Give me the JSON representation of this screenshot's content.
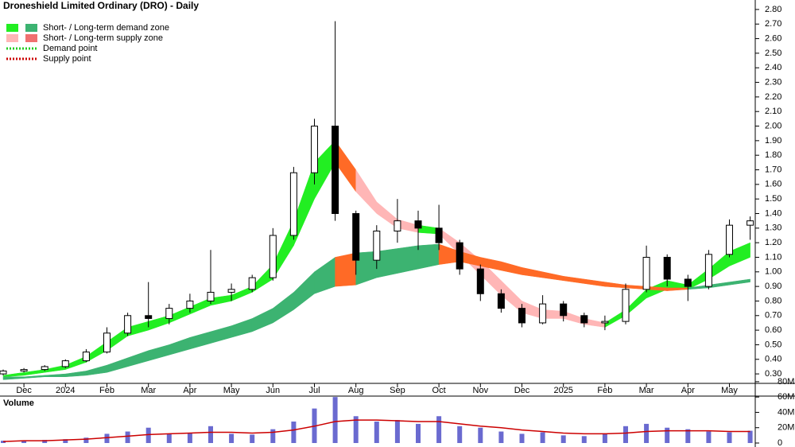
{
  "chart_data": [
    {
      "type": "candlestick",
      "title": "Droneshield Limited Ordinary (DRO) - Daily",
      "categories": [
        null,
        "Dec",
        null,
        "2024",
        null,
        "Feb",
        null,
        "Mar",
        null,
        "Apr",
        null,
        "May",
        null,
        "Jun",
        null,
        "Jul",
        null,
        "Aug",
        null,
        "Sep",
        null,
        "Oct",
        null,
        "Nov",
        null,
        "Dec",
        null,
        "2025",
        null,
        "Feb",
        null,
        "Mar",
        null,
        "Apr",
        null,
        "May",
        null
      ],
      "open": [
        0.3,
        0.32,
        0.33,
        0.35,
        0.39,
        0.45,
        0.58,
        0.7,
        0.68,
        0.75,
        0.8,
        0.86,
        0.88,
        0.96,
        1.25,
        1.68,
        2.0,
        1.4,
        1.08,
        1.28,
        1.35,
        1.3,
        1.2,
        1.02,
        0.85,
        0.75,
        0.65,
        0.78,
        0.7,
        0.65,
        0.66,
        0.88,
        1.1,
        0.95,
        0.9,
        1.12,
        1.32
      ],
      "high": [
        0.33,
        0.34,
        0.36,
        0.4,
        0.47,
        0.62,
        0.72,
        0.93,
        0.78,
        0.85,
        1.15,
        0.92,
        0.98,
        1.3,
        1.72,
        2.05,
        2.72,
        1.42,
        1.32,
        1.5,
        1.42,
        1.46,
        1.22,
        1.05,
        0.88,
        0.78,
        0.84,
        0.8,
        0.72,
        0.7,
        0.92,
        1.18,
        1.12,
        0.98,
        1.15,
        1.36,
        1.38
      ],
      "low": [
        0.29,
        0.31,
        0.32,
        0.34,
        0.38,
        0.44,
        0.56,
        0.62,
        0.64,
        0.72,
        0.78,
        0.8,
        0.86,
        0.94,
        1.22,
        1.6,
        1.35,
        0.98,
        1.02,
        1.2,
        1.15,
        1.15,
        0.98,
        0.8,
        0.72,
        0.62,
        0.64,
        0.66,
        0.62,
        0.6,
        0.64,
        0.86,
        0.9,
        0.8,
        0.88,
        1.1,
        1.22
      ],
      "close": [
        0.32,
        0.33,
        0.35,
        0.39,
        0.45,
        0.58,
        0.7,
        0.68,
        0.75,
        0.8,
        0.86,
        0.88,
        0.96,
        1.25,
        1.68,
        2.0,
        1.4,
        1.08,
        1.28,
        1.35,
        1.3,
        1.2,
        1.02,
        0.85,
        0.75,
        0.65,
        0.78,
        0.7,
        0.65,
        0.66,
        0.88,
        1.1,
        0.95,
        0.9,
        1.12,
        1.32,
        1.35
      ],
      "up_color": "#ffffff",
      "down_color": "#000000",
      "zones": [
        {
          "upper": [
            0.29,
            0.31,
            0.33,
            0.36,
            0.42,
            0.52,
            0.62,
            0.66,
            0.7,
            0.76,
            0.82,
            0.84,
            0.9,
            1.05,
            1.35,
            1.75,
            1.9,
            1.7,
            1.48,
            1.36,
            1.32,
            1.3,
            1.2,
            1.08,
            0.94,
            0.8,
            0.74,
            0.73,
            0.68,
            0.65,
            0.74,
            0.88,
            0.94,
            0.91,
            1.02,
            1.14,
            1.2
          ],
          "lower": [
            0.28,
            0.29,
            0.31,
            0.33,
            0.38,
            0.46,
            0.56,
            0.6,
            0.65,
            0.71,
            0.77,
            0.8,
            0.86,
            0.95,
            1.18,
            1.5,
            1.75,
            1.55,
            1.4,
            1.3,
            1.27,
            1.26,
            1.12,
            0.98,
            0.84,
            0.72,
            0.68,
            0.68,
            0.64,
            0.62,
            0.7,
            0.82,
            0.88,
            0.88,
            0.95,
            1.04,
            1.1
          ],
          "segment_colors": [
            "#22ee22",
            "#22ee22",
            "#22ee22",
            "#22ee22",
            "#22ee22",
            "#22ee22",
            "#22ee22",
            "#22ee22",
            "#22ee22",
            "#22ee22",
            "#22ee22",
            "#22ee22",
            "#22ee22",
            "#22ee22",
            "#22ee22",
            "#22ee22",
            "#ff6a26",
            "#ffb6b6",
            "#ffb6b6",
            "#ffb6b6",
            "#22ee22",
            "#ffb6b6",
            "#ffb6b6",
            "#ffb6b6",
            "#ffb6b6",
            "#ffb6b6",
            "#ffb6b6",
            "#ffb6b6",
            "#ffb6b6",
            "#22ee22",
            "#22ee22",
            "#22ee22",
            "#22ee22",
            "#22ee22",
            "#22ee22",
            "#22ee22"
          ]
        },
        {
          "upper": [
            0.28,
            0.28,
            0.29,
            0.3,
            0.32,
            0.36,
            0.41,
            0.46,
            0.5,
            0.55,
            0.59,
            0.63,
            0.68,
            0.75,
            0.86,
            1.0,
            1.1,
            1.13,
            1.14,
            1.16,
            1.18,
            1.19,
            1.14,
            1.1,
            1.07,
            1.03,
            1.0,
            0.97,
            0.95,
            0.93,
            0.91,
            0.9,
            0.89,
            0.89,
            0.91,
            0.93,
            0.95
          ],
          "lower": [
            0.26,
            0.27,
            0.28,
            0.28,
            0.29,
            0.31,
            0.35,
            0.39,
            0.43,
            0.47,
            0.51,
            0.55,
            0.59,
            0.65,
            0.74,
            0.85,
            0.9,
            0.91,
            0.96,
            0.99,
            1.02,
            1.05,
            1.07,
            1.04,
            1.01,
            0.98,
            0.96,
            0.94,
            0.92,
            0.9,
            0.89,
            0.88,
            0.87,
            0.88,
            0.89,
            0.91,
            0.93
          ],
          "segment_colors": [
            "#3cb371",
            "#3cb371",
            "#3cb371",
            "#3cb371",
            "#3cb371",
            "#3cb371",
            "#3cb371",
            "#3cb371",
            "#3cb371",
            "#3cb371",
            "#3cb371",
            "#3cb371",
            "#3cb371",
            "#3cb371",
            "#3cb371",
            "#3cb371",
            "#ff6a26",
            "#3cb371",
            "#3cb371",
            "#3cb371",
            "#3cb371",
            "#ff6a26",
            "#ff6a26",
            "#ff6a26",
            "#ff6a26",
            "#ff6a26",
            "#ff6a26",
            "#ff6a26",
            "#ff6a26",
            "#ff6a26",
            "#ff6a26",
            "#ff6a26",
            "#ff6a26",
            "#3cb371",
            "#3cb371",
            "#3cb371"
          ]
        }
      ],
      "legend": [
        {
          "label": "Short- / Long-term demand zone",
          "colors": [
            "#22ee22",
            "#3cb371"
          ],
          "style": "box"
        },
        {
          "label": "Short- / Long-term supply zone",
          "colors": [
            "#ffb6b6",
            "#f07070"
          ],
          "style": "box"
        },
        {
          "label": "Demand point",
          "colors": [
            "#22cc22"
          ],
          "style": "dotted"
        },
        {
          "label": "Supply point",
          "colors": [
            "#cc0000"
          ],
          "style": "dotted"
        }
      ],
      "ylim": [
        0.235,
        2.865
      ],
      "yticks": [
        {
          "value": 0.3,
          "label": "0.30"
        },
        {
          "value": 0.4,
          "label": "0.40"
        },
        {
          "value": 0.5,
          "label": "0.50"
        },
        {
          "value": 0.6,
          "label": "0.60"
        },
        {
          "value": 0.7,
          "label": "0.70"
        },
        {
          "value": 0.8,
          "label": "0.80"
        },
        {
          "value": 0.9,
          "label": "0.90"
        },
        {
          "value": 1.0,
          "label": "1.00"
        },
        {
          "value": 1.1,
          "label": "1.10"
        },
        {
          "value": 1.2,
          "label": "1.20"
        },
        {
          "value": 1.3,
          "label": "1.30"
        },
        {
          "value": 1.4,
          "label": "1.40"
        },
        {
          "value": 1.5,
          "label": "1.50"
        },
        {
          "value": 1.6,
          "label": "1.60"
        },
        {
          "value": 1.7,
          "label": "1.70"
        },
        {
          "value": 1.8,
          "label": "1.80"
        },
        {
          "value": 1.9,
          "label": "1.90"
        },
        {
          "value": 2.0,
          "label": "2.00"
        },
        {
          "value": 2.1,
          "label": "2.10"
        },
        {
          "value": 2.2,
          "label": "2.20"
        },
        {
          "value": 2.3,
          "label": "2.30"
        },
        {
          "value": 2.4,
          "label": "2.40"
        },
        {
          "value": 2.5,
          "label": "2.50"
        },
        {
          "value": 2.6,
          "label": "2.60"
        },
        {
          "value": 2.7,
          "label": "2.70"
        },
        {
          "value": 2.8,
          "label": "2.80"
        }
      ]
    },
    {
      "type": "bar",
      "title": "Volume",
      "title_color": "#5b5bbf",
      "color": "#6a6ad0",
      "values": [
        3000000,
        3000000,
        4000000,
        5000000,
        7000000,
        12000000,
        15000000,
        20000000,
        12000000,
        13000000,
        22000000,
        12000000,
        11000000,
        18000000,
        28000000,
        45000000,
        60000000,
        35000000,
        28000000,
        30000000,
        25000000,
        35000000,
        22000000,
        20000000,
        15000000,
        12000000,
        14000000,
        10000000,
        9000000,
        12000000,
        22000000,
        25000000,
        20000000,
        18000000,
        15000000,
        14000000,
        16000000
      ],
      "average": [
        2000000,
        3000000,
        3000000,
        4000000,
        5000000,
        7000000,
        9000000,
        11000000,
        12000000,
        13000000,
        14000000,
        14000000,
        13000000,
        14000000,
        17000000,
        22000000,
        28000000,
        30000000,
        30000000,
        29000000,
        28000000,
        28000000,
        25000000,
        22000000,
        20000000,
        17000000,
        15000000,
        13000000,
        12000000,
        12000000,
        13000000,
        15000000,
        16000000,
        16000000,
        16000000,
        15000000,
        15000000
      ],
      "average_color": "#cc0000",
      "ylim": [
        0,
        83000000
      ],
      "yticks": [
        0,
        {
          "value": 20000000,
          "label": "20M"
        },
        {
          "value": 40000000,
          "label": "40M"
        },
        {
          "value": 60000000,
          "label": "60M"
        },
        {
          "value": 80000000,
          "label": "80M"
        }
      ]
    }
  ]
}
